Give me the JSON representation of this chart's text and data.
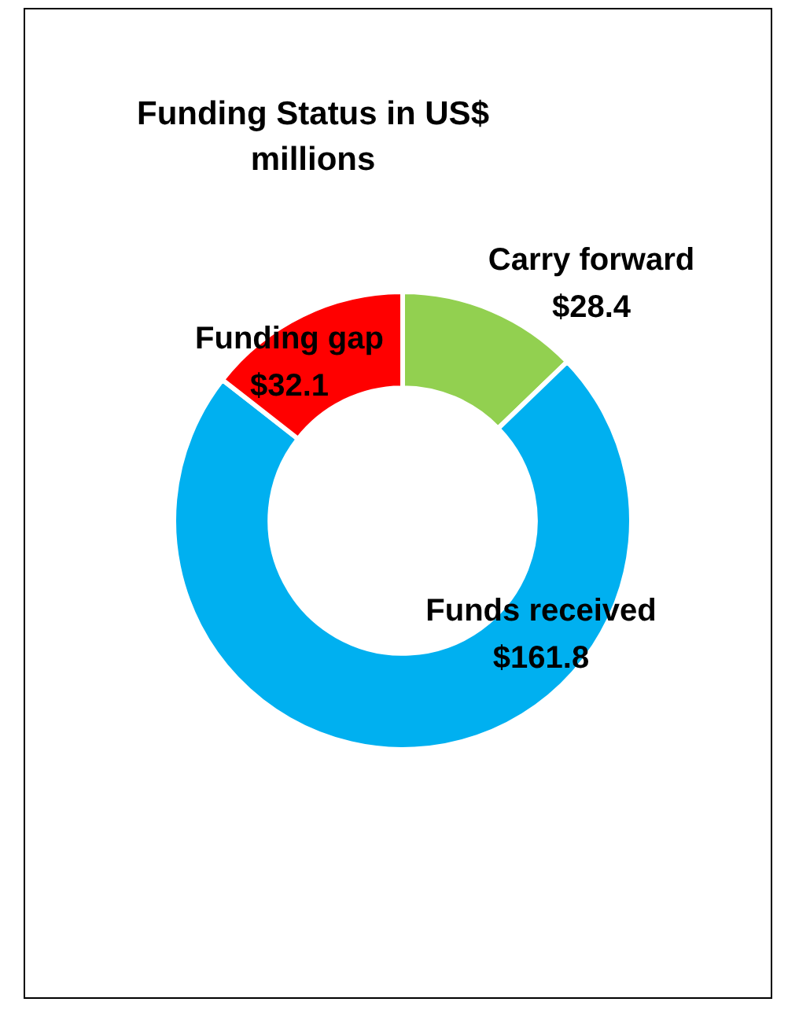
{
  "chart_data": {
    "type": "donut",
    "title": "Funding Status in US$ millions",
    "categories": [
      "Carry forward",
      "Funds received",
      "Funding gap"
    ],
    "values": [
      28.4,
      161.8,
      32.1
    ],
    "colors": [
      "#92d050",
      "#00b0f0",
      "#ff0000"
    ],
    "value_labels": [
      "$28.4",
      "$161.8",
      "$32.1"
    ],
    "legend": false
  }
}
